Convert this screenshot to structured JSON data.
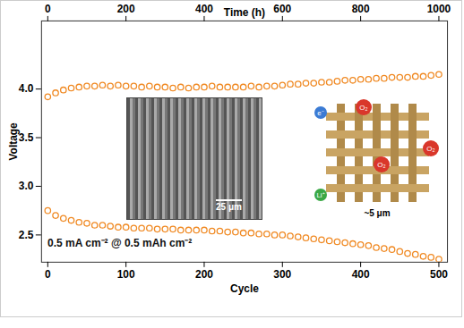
{
  "chart_data": {
    "type": "line",
    "xlabel": "Cycle",
    "ylabel": "Voltage",
    "x2label": "Time (h)",
    "x": [
      0,
      10,
      20,
      30,
      40,
      50,
      60,
      70,
      80,
      90,
      100,
      110,
      120,
      130,
      140,
      150,
      160,
      170,
      180,
      190,
      200,
      210,
      220,
      230,
      240,
      250,
      260,
      270,
      280,
      290,
      300,
      310,
      320,
      330,
      340,
      350,
      360,
      370,
      380,
      390,
      400,
      410,
      420,
      430,
      440,
      450,
      460,
      470,
      480,
      490,
      500
    ],
    "series": [
      {
        "color": "#f08a24",
        "marker": "open_circle",
        "values": [
          3.92,
          3.96,
          3.99,
          4.01,
          4.02,
          4.03,
          4.03,
          4.04,
          4.03,
          4.04,
          4.03,
          4.03,
          4.02,
          4.03,
          4.02,
          4.02,
          4.01,
          4.02,
          4.01,
          4.02,
          4.02,
          4.03,
          4.02,
          4.02,
          4.02,
          4.02,
          4.03,
          4.02,
          4.03,
          4.03,
          4.04,
          4.05,
          4.05,
          4.06,
          4.06,
          4.07,
          4.07,
          4.08,
          4.09,
          4.09,
          4.1,
          4.1,
          4.11,
          4.11,
          4.12,
          4.12,
          4.12,
          4.13,
          4.13,
          4.14,
          4.15
        ]
      },
      {
        "color": "#f08a24",
        "marker": "open_circle",
        "values": [
          2.75,
          2.7,
          2.67,
          2.65,
          2.63,
          2.62,
          2.6,
          2.6,
          2.59,
          2.58,
          2.58,
          2.57,
          2.57,
          2.57,
          2.56,
          2.56,
          2.56,
          2.55,
          2.55,
          2.55,
          2.55,
          2.54,
          2.54,
          2.53,
          2.53,
          2.52,
          2.52,
          2.51,
          2.51,
          2.5,
          2.5,
          2.49,
          2.48,
          2.47,
          2.46,
          2.45,
          2.44,
          2.43,
          2.42,
          2.41,
          2.4,
          2.39,
          2.37,
          2.36,
          2.35,
          2.33,
          2.31,
          2.3,
          2.28,
          2.27,
          2.25
        ]
      }
    ],
    "xlim": [
      -8,
      511
    ],
    "xticks": [
      0,
      100,
      200,
      300,
      400,
      500
    ],
    "x2lim": [
      -16,
      1022
    ],
    "x2ticks": [
      0,
      200,
      400,
      600,
      800,
      1000
    ],
    "ylim": [
      2.22,
      4.7
    ],
    "yticks": [
      2.5,
      {
        "value": 3,
        "label": "3.0"
      },
      3.5,
      {
        "value": 4,
        "label": "4.0"
      }
    ],
    "grid": false,
    "annotations": [
      "0.5 mA cm⁻² @ 0.5 mAh cm⁻²",
      "25 μm",
      "~5 μm"
    ],
    "schematic_labels": [
      "O₂",
      "O₂",
      "O₂",
      "Li⁺",
      "e⁻"
    ]
  }
}
